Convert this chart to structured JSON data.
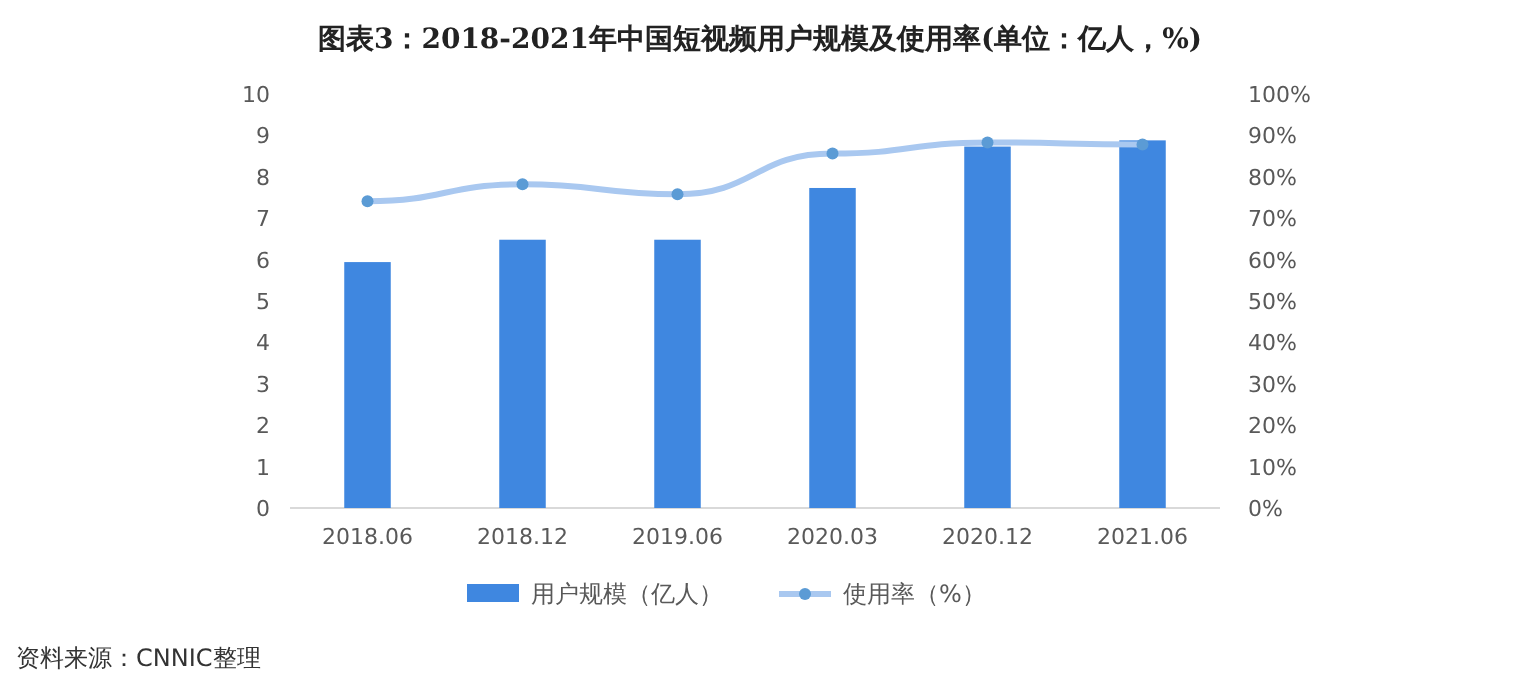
{
  "chart_data": {
    "type": "bar",
    "title": "图表3：2018-2021年中国短视频用户规模及使用率(单位：亿人，%)",
    "categories": [
      "2018.06",
      "2018.12",
      "2019.06",
      "2020.03",
      "2020.12",
      "2021.06"
    ],
    "series": [
      {
        "name": "用户规模（亿人）",
        "color": "#3f87e0",
        "values": [
          5.94,
          6.48,
          6.48,
          7.73,
          8.73,
          8.88
        ]
      },
      {
        "name": "使用率（%）",
        "type": "line",
        "axis": "y2",
        "color": "#a9c8f0",
        "marker": "circle",
        "values": [
          74.1,
          78.2,
          75.8,
          85.6,
          88.3,
          87.8
        ]
      }
    ],
    "ylim": [
      0,
      10
    ],
    "yticks": [
      0,
      1,
      2,
      3,
      4,
      5,
      6,
      7,
      8,
      9,
      10
    ],
    "y2lim": [
      0,
      100
    ],
    "y2ticks": [
      {
        "value": 0,
        "label": "0%"
      },
      {
        "value": 10,
        "label": "10%"
      },
      {
        "value": 20,
        "label": "20%"
      },
      {
        "value": 30,
        "label": "30%"
      },
      {
        "value": 40,
        "label": "40%"
      },
      {
        "value": 50,
        "label": "50%"
      },
      {
        "value": 60,
        "label": "60%"
      },
      {
        "value": 70,
        "label": "70%"
      },
      {
        "value": 80,
        "label": "80%"
      },
      {
        "value": 90,
        "label": "90%"
      },
      {
        "value": 100,
        "label": "100%"
      }
    ],
    "legend": "bottom",
    "annotations": [
      "资料来源：CNNIC整理"
    ]
  }
}
